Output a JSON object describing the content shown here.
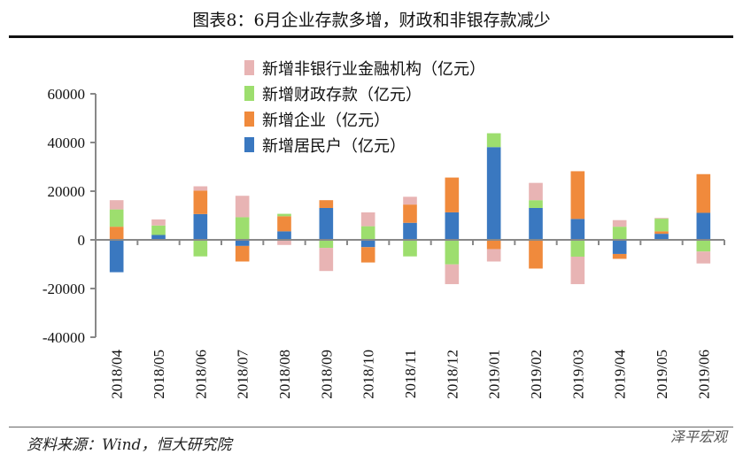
{
  "title": "图表8：6月企业存款多增，财政和非银存款减少",
  "source": "资料来源：Wind，恒大研究院",
  "watermark": "泽平宏观",
  "chart_data": {
    "type": "bar",
    "stacked": true,
    "categories": [
      "2018/04",
      "2018/05",
      "2018/06",
      "2018/07",
      "2018/08",
      "2018/09",
      "2018/10",
      "2018/11",
      "2018/12",
      "2019/01",
      "2019/02",
      "2019/03",
      "2019/04",
      "2019/05",
      "2019/06"
    ],
    "series": [
      {
        "name": "新增居民户（亿元）",
        "color": "#3a78c0",
        "values": [
          -13300,
          2000,
          10600,
          -2500,
          3500,
          13100,
          -3000,
          7000,
          11300,
          38100,
          13100,
          8600,
          -5800,
          2500,
          11100
        ]
      },
      {
        "name": "新增企业（亿元）",
        "color": "#f08a3c",
        "values": [
          5400,
          0,
          9600,
          -6400,
          6200,
          3200,
          -6300,
          7500,
          14300,
          -3800,
          -11800,
          19600,
          -2000,
          1000,
          15900
        ]
      },
      {
        "name": "新增财政存款（亿元）",
        "color": "#9dde6e",
        "values": [
          7100,
          3900,
          -6800,
          9300,
          1000,
          -3300,
          5600,
          -6800,
          -10100,
          5700,
          3200,
          -6900,
          5400,
          5200,
          -4800
        ]
      },
      {
        "name": "新增非银行业金融机构（亿元）",
        "color": "#e8b4b4",
        "values": [
          3800,
          2500,
          1800,
          8800,
          -2100,
          -9500,
          5700,
          3200,
          -8100,
          -5100,
          7100,
          -11300,
          2700,
          300,
          -4900
        ]
      }
    ],
    "legend_order": [
      3,
      2,
      1,
      0
    ],
    "yticks": [
      60000,
      40000,
      20000,
      0,
      -20000,
      -40000
    ],
    "ylim": [
      -40000,
      60000
    ],
    "xlabel": "",
    "ylabel": "",
    "legend_position": "top-center"
  }
}
